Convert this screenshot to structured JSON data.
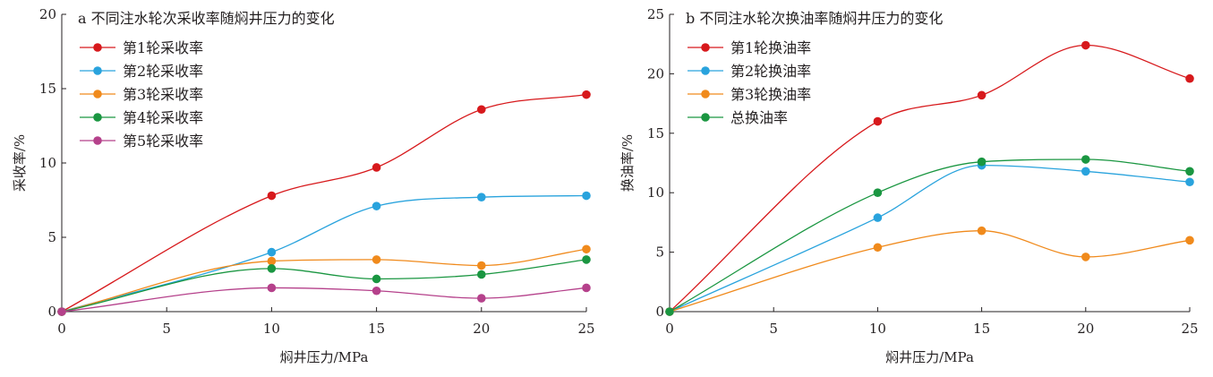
{
  "chart_data": [
    {
      "type": "line",
      "title": "a 不同注水轮次采收率随焖井压力的变化",
      "xlabel": "焖井压力/MPa",
      "ylabel": "采收率/%",
      "xlim": [
        0,
        25
      ],
      "ylim": [
        0,
        20
      ],
      "xticks": [
        "0",
        "5",
        "10",
        "15",
        "20",
        "25"
      ],
      "yticks": [
        "0",
        "5",
        "10",
        "15",
        "20"
      ],
      "x": [
        0,
        10,
        15,
        20,
        25
      ],
      "legend_position": "top-left",
      "grid": false,
      "series": [
        {
          "name": "第1轮采收率",
          "color": "#d7191c",
          "values": [
            0,
            7.8,
            9.7,
            13.6,
            14.6
          ]
        },
        {
          "name": "第2轮采收率",
          "color": "#29a3dd",
          "values": [
            0,
            4.0,
            7.1,
            7.7,
            7.8
          ]
        },
        {
          "name": "第3轮采收率",
          "color": "#f08a1c",
          "values": [
            0,
            3.4,
            3.5,
            3.1,
            4.2
          ]
        },
        {
          "name": "第4轮采收率",
          "color": "#1a9641",
          "values": [
            0,
            2.9,
            2.2,
            2.5,
            3.5
          ]
        },
        {
          "name": "第5轮采收率",
          "color": "#b5418b",
          "values": [
            0,
            1.6,
            1.4,
            0.9,
            1.6
          ]
        }
      ]
    },
    {
      "type": "line",
      "title": "b 不同注水轮次换油率随焖井压力的变化",
      "xlabel": "焖井压力/MPa",
      "ylabel": "换油率/%",
      "xlim": [
        0,
        25
      ],
      "ylim": [
        0,
        25
      ],
      "xticks": [
        "0",
        "5",
        "10",
        "15",
        "20",
        "25"
      ],
      "yticks": [
        "0",
        "5",
        "10",
        "15",
        "20",
        "25"
      ],
      "x": [
        0,
        10,
        15,
        20,
        25
      ],
      "legend_position": "top-left",
      "grid": false,
      "series": [
        {
          "name": "第1轮换油率",
          "color": "#d7191c",
          "values": [
            0,
            16.0,
            18.2,
            22.4,
            19.6
          ]
        },
        {
          "name": "第2轮换油率",
          "color": "#29a3dd",
          "values": [
            0,
            7.9,
            12.3,
            11.8,
            10.9
          ]
        },
        {
          "name": "第3轮换油率",
          "color": "#f08a1c",
          "values": [
            0,
            5.4,
            6.8,
            4.6,
            6.0
          ]
        },
        {
          "name": "总换油率",
          "color": "#1a9641",
          "values": [
            0,
            10.0,
            12.6,
            12.8,
            11.8
          ]
        }
      ]
    }
  ]
}
